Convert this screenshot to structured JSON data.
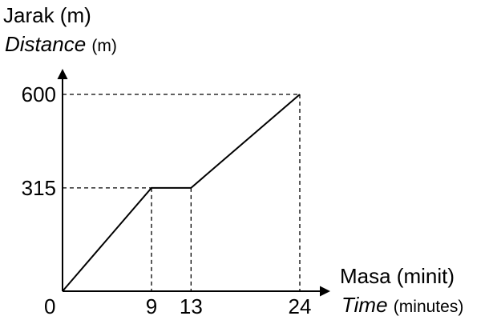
{
  "chart_data": {
    "type": "line",
    "title": "",
    "ylabel": {
      "line1": "Jarak (m)",
      "line2_italic": "Distance",
      "line2_unit": "(m)"
    },
    "xlabel": {
      "line1": "Masa (minit)",
      "line2_italic": "Time",
      "line2_unit": "(minutes)"
    },
    "origin_label": "0",
    "x_ticks": [
      9,
      13,
      24
    ],
    "y_ticks": [
      315,
      600
    ],
    "xlim": [
      0,
      24
    ],
    "ylim": [
      0,
      600
    ],
    "grid": false,
    "guide_lines": "dashed",
    "series": [
      {
        "x": [
          0,
          9,
          13,
          24
        ],
        "y": [
          0,
          315,
          315,
          600
        ]
      }
    ]
  }
}
